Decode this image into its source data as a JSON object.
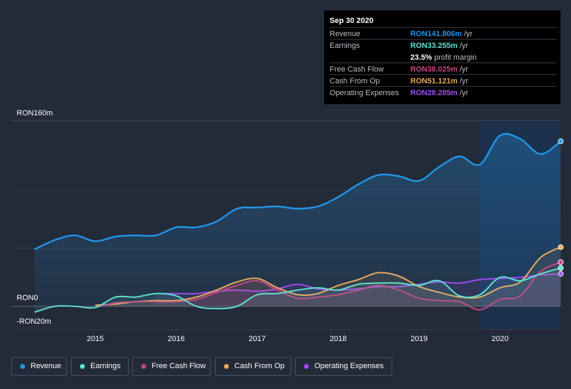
{
  "colors": {
    "revenue": "#2394e6",
    "earnings": "#5ee0d1",
    "free_cash_flow": "#c5467f",
    "cash_from_op": "#e8aa5c",
    "operating_expenses": "#9c4ef0",
    "background": "#232a38",
    "forecast_band": "#1b3350"
  },
  "tooltip": {
    "date": "Sep 30 2020",
    "rows": [
      {
        "label": "Revenue",
        "value": "RON141.806m",
        "unit": "/yr",
        "color": "#2394e6"
      },
      {
        "label": "Earnings",
        "value": "RON33.255m",
        "unit": "/yr",
        "color": "#5ee0d1"
      },
      {
        "label": "",
        "value": "23.5%",
        "unit": "profit margin",
        "color": "#ffffff"
      },
      {
        "label": "Free Cash Flow",
        "value": "RON38.025m",
        "unit": "/yr",
        "color": "#c5467f"
      },
      {
        "label": "Cash From Op",
        "value": "RON51.121m",
        "unit": "/yr",
        "color": "#e8aa5c"
      },
      {
        "label": "Operating Expenses",
        "value": "RON28.285m",
        "unit": "/yr",
        "color": "#9c4ef0"
      }
    ]
  },
  "legend": {
    "items": [
      {
        "label": "Revenue",
        "color": "#2394e6"
      },
      {
        "label": "Earnings",
        "color": "#5ee0d1"
      },
      {
        "label": "Free Cash Flow",
        "color": "#c5467f"
      },
      {
        "label": "Cash From Op",
        "color": "#e8aa5c"
      },
      {
        "label": "Operating Expenses",
        "color": "#9c4ef0"
      }
    ]
  },
  "chart_data": {
    "type": "line",
    "title": "",
    "xlabel": "",
    "ylabel": "",
    "ylim": [
      -20,
      160
    ],
    "y_tick_labels": [
      "RON160m",
      "RON0",
      "-RON20m"
    ],
    "x_tick_labels": [
      "2015",
      "2016",
      "2017",
      "2018",
      "2019",
      "2020"
    ],
    "forecast_region_start": 2019.75,
    "series": [
      {
        "name": "Revenue",
        "key": "revenue",
        "points": [
          [
            2014.25,
            49
          ],
          [
            2014.5,
            57
          ],
          [
            2014.75,
            61
          ],
          [
            2015.0,
            56
          ],
          [
            2015.25,
            60
          ],
          [
            2015.5,
            61
          ],
          [
            2015.75,
            61
          ],
          [
            2016.0,
            68
          ],
          [
            2016.25,
            68
          ],
          [
            2016.5,
            73
          ],
          [
            2016.75,
            84
          ],
          [
            2017.0,
            85
          ],
          [
            2017.25,
            86
          ],
          [
            2017.5,
            84
          ],
          [
            2017.75,
            86
          ],
          [
            2018.0,
            94
          ],
          [
            2018.25,
            105
          ],
          [
            2018.5,
            113
          ],
          [
            2018.75,
            112
          ],
          [
            2019.0,
            108
          ],
          [
            2019.25,
            120
          ],
          [
            2019.5,
            129
          ],
          [
            2019.75,
            122
          ],
          [
            2020.0,
            147
          ],
          [
            2020.25,
            144
          ],
          [
            2020.5,
            131
          ],
          [
            2020.75,
            142
          ]
        ]
      },
      {
        "name": "Earnings",
        "key": "earnings",
        "points": [
          [
            2014.25,
            -5
          ],
          [
            2014.5,
            0
          ],
          [
            2014.75,
            0
          ],
          [
            2015.0,
            -1
          ],
          [
            2015.25,
            8
          ],
          [
            2015.5,
            8
          ],
          [
            2015.75,
            11
          ],
          [
            2016.0,
            9
          ],
          [
            2016.25,
            0
          ],
          [
            2016.5,
            -2
          ],
          [
            2016.75,
            0
          ],
          [
            2017.0,
            10
          ],
          [
            2017.25,
            11
          ],
          [
            2017.5,
            14
          ],
          [
            2017.75,
            16
          ],
          [
            2018.0,
            14
          ],
          [
            2018.25,
            19
          ],
          [
            2018.5,
            20
          ],
          [
            2018.75,
            20
          ],
          [
            2019.0,
            18
          ],
          [
            2019.25,
            22
          ],
          [
            2019.5,
            9
          ],
          [
            2019.75,
            10
          ],
          [
            2020.0,
            25
          ],
          [
            2020.25,
            22
          ],
          [
            2020.5,
            28
          ],
          [
            2020.75,
            33
          ]
        ]
      },
      {
        "name": "Free Cash Flow",
        "key": "free_cash_flow",
        "points": [
          [
            2015.0,
            -1
          ],
          [
            2015.25,
            3
          ],
          [
            2015.5,
            4
          ],
          [
            2015.75,
            4
          ],
          [
            2016.0,
            4
          ],
          [
            2016.25,
            6
          ],
          [
            2016.5,
            12
          ],
          [
            2016.75,
            18
          ],
          [
            2017.0,
            22
          ],
          [
            2017.25,
            14
          ],
          [
            2017.5,
            7
          ],
          [
            2017.75,
            8
          ],
          [
            2018.0,
            10
          ],
          [
            2018.25,
            14
          ],
          [
            2018.5,
            18
          ],
          [
            2018.75,
            14
          ],
          [
            2019.0,
            7
          ],
          [
            2019.25,
            5
          ],
          [
            2019.5,
            4
          ],
          [
            2019.75,
            -3
          ],
          [
            2020.0,
            6
          ],
          [
            2020.25,
            9
          ],
          [
            2020.5,
            30
          ],
          [
            2020.75,
            38
          ]
        ]
      },
      {
        "name": "Cash From Op",
        "key": "cash_from_op",
        "points": [
          [
            2015.0,
            1
          ],
          [
            2015.25,
            2
          ],
          [
            2015.5,
            4
          ],
          [
            2015.75,
            5
          ],
          [
            2016.0,
            5
          ],
          [
            2016.25,
            8
          ],
          [
            2016.5,
            14
          ],
          [
            2016.75,
            21
          ],
          [
            2017.0,
            24
          ],
          [
            2017.25,
            16
          ],
          [
            2017.5,
            10
          ],
          [
            2017.75,
            11
          ],
          [
            2018.0,
            18
          ],
          [
            2018.25,
            23
          ],
          [
            2018.5,
            29
          ],
          [
            2018.75,
            26
          ],
          [
            2019.0,
            17
          ],
          [
            2019.25,
            12
          ],
          [
            2019.5,
            8
          ],
          [
            2019.75,
            8
          ],
          [
            2020.0,
            16
          ],
          [
            2020.25,
            21
          ],
          [
            2020.5,
            42
          ],
          [
            2020.75,
            51
          ]
        ]
      },
      {
        "name": "Operating Expenses",
        "key": "operating_expenses",
        "points": [
          [
            2015.75,
            11
          ],
          [
            2016.0,
            11
          ],
          [
            2016.25,
            11
          ],
          [
            2016.5,
            13
          ],
          [
            2016.75,
            14
          ],
          [
            2017.0,
            13
          ],
          [
            2017.25,
            15
          ],
          [
            2017.5,
            19
          ],
          [
            2017.75,
            15
          ],
          [
            2018.0,
            14
          ],
          [
            2018.25,
            15
          ],
          [
            2018.5,
            17
          ],
          [
            2018.75,
            17
          ],
          [
            2019.0,
            19
          ],
          [
            2019.25,
            21
          ],
          [
            2019.5,
            20
          ],
          [
            2019.75,
            23
          ],
          [
            2020.0,
            24
          ],
          [
            2020.25,
            25
          ],
          [
            2020.5,
            27
          ],
          [
            2020.75,
            28
          ]
        ]
      }
    ]
  }
}
